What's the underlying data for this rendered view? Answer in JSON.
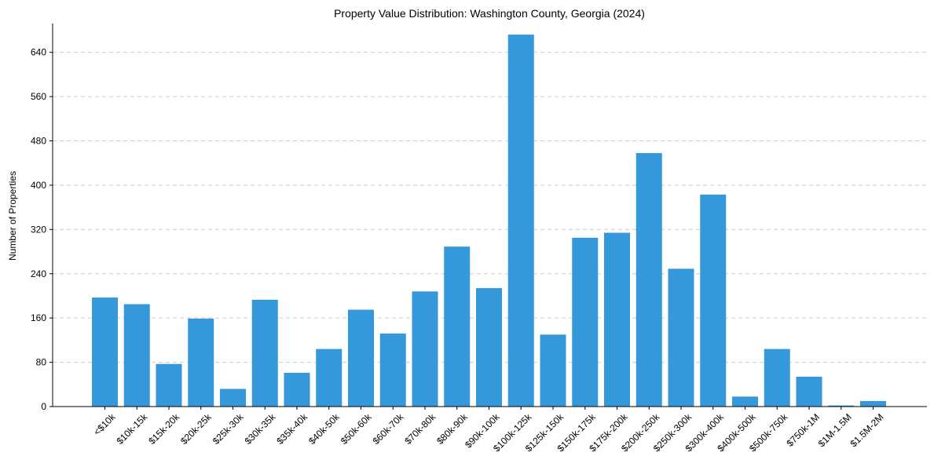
{
  "chart_data": {
    "type": "bar",
    "title": "Property Value Distribution: Washington County, Georgia (2024)",
    "xlabel": "",
    "ylabel": "Number of Properties",
    "ylim": [
      0,
      692
    ],
    "yticks": [
      0,
      80,
      160,
      240,
      320,
      400,
      480,
      560,
      640
    ],
    "grid": "y-dashed",
    "bar_color": "#3498db",
    "categories": [
      "<$10k",
      "$10k-15k",
      "$15k-20k",
      "$20k-25k",
      "$25k-30k",
      "$30k-35k",
      "$35k-40k",
      "$40k-50k",
      "$50k-60k",
      "$60k-70k",
      "$70k-80k",
      "$80k-90k",
      "$90k-100k",
      "$100k-125k",
      "$125k-150k",
      "$150k-175k",
      "$175k-200k",
      "$200k-250k",
      "$250k-300k",
      "$300k-400k",
      "$400k-500k",
      "$500k-750k",
      "$750k-1M",
      "$1M-1.5M",
      "$1.5M-2M"
    ],
    "values": [
      197,
      185,
      77,
      159,
      32,
      193,
      61,
      104,
      175,
      132,
      208,
      289,
      214,
      672,
      130,
      305,
      314,
      458,
      249,
      383,
      18,
      104,
      54,
      2,
      10
    ]
  }
}
